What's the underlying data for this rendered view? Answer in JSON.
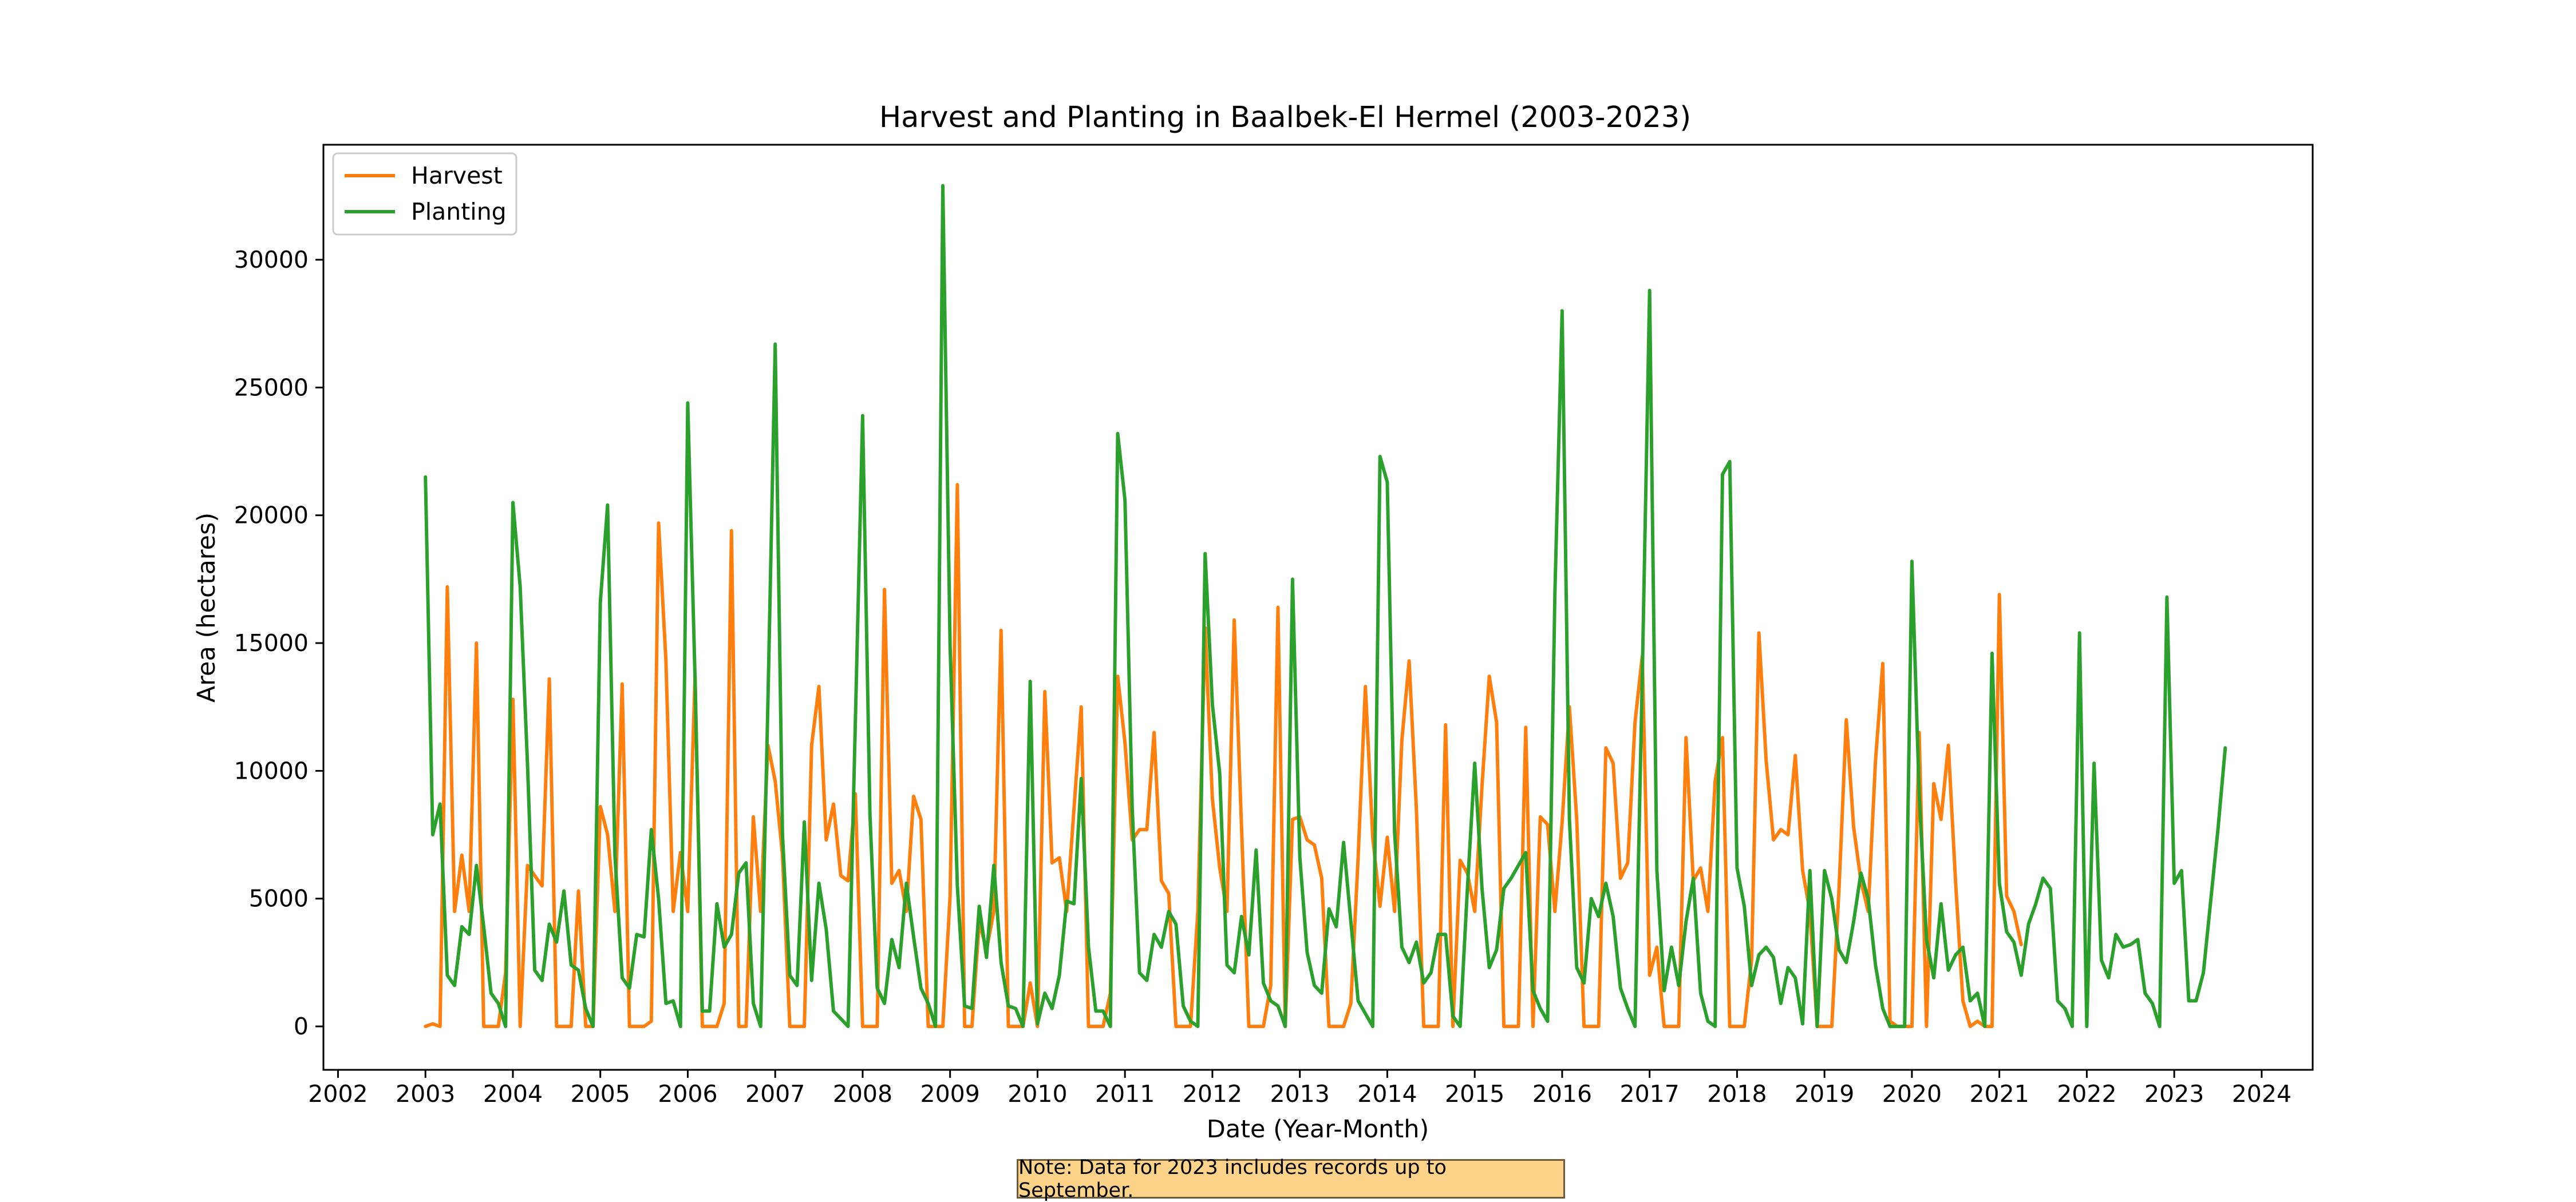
{
  "note": "Note: Data for 2023 includes records up to September.",
  "chart_data": {
    "type": "line",
    "title": "Harvest and Planting in Baalbek-El Hermel (2003-2023)",
    "xlabel": "Date (Year-Month)",
    "ylabel": "Area (hectares)",
    "xlim": [
      "2001-11",
      "2024-08"
    ],
    "ylim": [
      -1700,
      34500
    ],
    "xticks": [
      "2002",
      "2003",
      "2004",
      "2005",
      "2006",
      "2007",
      "2008",
      "2009",
      "2010",
      "2011",
      "2012",
      "2013",
      "2014",
      "2015",
      "2016",
      "2017",
      "2018",
      "2019",
      "2020",
      "2021",
      "2022",
      "2023",
      "2024"
    ],
    "yticks": [
      0,
      5000,
      10000,
      15000,
      20000,
      25000,
      30000
    ],
    "grid": false,
    "legend_position": "top-left",
    "start": "2003-01",
    "series": [
      {
        "name": "Harvest",
        "color": "#ff7f0e",
        "values": [
          0,
          100,
          0,
          17200,
          4500,
          6700,
          4500,
          15000,
          0,
          0,
          0,
          2100,
          12800,
          0,
          6300,
          5900,
          5500,
          13600,
          0,
          0,
          0,
          5300,
          0,
          0,
          8600,
          7500,
          4500,
          13400,
          0,
          0,
          0,
          200,
          19700,
          14300,
          4500,
          6800,
          4500,
          13700,
          0,
          0,
          0,
          900,
          19400,
          0,
          0,
          8200,
          4500,
          11000,
          9600,
          6700,
          0,
          0,
          0,
          11000,
          13300,
          7300,
          8700,
          5900,
          5700,
          9100,
          0,
          0,
          0,
          17100,
          5600,
          6100,
          4500,
          9000,
          8100,
          0,
          0,
          0,
          5100,
          21200,
          0,
          0,
          4100,
          3000,
          4500,
          15500,
          0,
          0,
          0,
          1700,
          0,
          13100,
          6400,
          6600,
          4500,
          8500,
          12500,
          0,
          0,
          0,
          1300,
          13700,
          11100,
          7300,
          7700,
          7700,
          11500,
          5700,
          5200,
          0,
          0,
          0,
          4500,
          15600,
          8900,
          6200,
          4500,
          15900,
          7800,
          0,
          0,
          0,
          1600,
          16400,
          0,
          8100,
          8200,
          7300,
          7100,
          5800,
          0,
          0,
          0,
          900,
          6600,
          13300,
          7400,
          4700,
          7400,
          4500,
          11200,
          14300,
          8500,
          0,
          0,
          0,
          11800,
          0,
          6500,
          6000,
          4500,
          9400,
          13700,
          11900,
          0,
          0,
          0,
          11700,
          0,
          8200,
          7900,
          4500,
          8000,
          12500,
          8100,
          0,
          0,
          0,
          10900,
          10300,
          5800,
          6400,
          11900,
          14500,
          2000,
          3100,
          0,
          0,
          0,
          11300,
          5700,
          6200,
          4500,
          9600,
          11300,
          0,
          0,
          0,
          2600,
          15400,
          10400,
          7300,
          7700,
          7500,
          10600,
          6100,
          4500,
          0,
          0,
          0,
          5400,
          12000,
          7800,
          5700,
          4500,
          10400,
          14200,
          200,
          0,
          0,
          0,
          11500,
          0,
          9500,
          8100,
          11000,
          5600,
          1000,
          0,
          200,
          0,
          0,
          16900,
          5100,
          4500,
          3200
        ]
      },
      {
        "name": "Planting",
        "color": "#2ca02c",
        "values": [
          21500,
          7500,
          8700,
          2000,
          1600,
          3900,
          3600,
          6300,
          3900,
          1300,
          900,
          0,
          20500,
          17200,
          10300,
          2200,
          1800,
          4000,
          3300,
          5300,
          2400,
          2200,
          700,
          0,
          16600,
          20400,
          6700,
          1900,
          1500,
          3600,
          3500,
          7700,
          5000,
          900,
          1000,
          0,
          24400,
          13600,
          600,
          600,
          4800,
          3100,
          3600,
          6000,
          6400,
          900,
          0,
          12700,
          26700,
          7500,
          2000,
          1600,
          8000,
          1800,
          5600,
          3800,
          600,
          300,
          0,
          11900,
          23900,
          8300,
          1500,
          900,
          3400,
          2300,
          5600,
          3500,
          1500,
          900,
          0,
          32900,
          14900,
          5500,
          800,
          700,
          4700,
          2700,
          6300,
          2500,
          800,
          700,
          0,
          13500,
          100,
          1300,
          700,
          2000,
          4900,
          4800,
          9700,
          3100,
          600,
          600,
          0,
          23200,
          20600,
          8500,
          2100,
          1800,
          3600,
          3100,
          4500,
          4000,
          800,
          200,
          0,
          18500,
          12600,
          9900,
          2400,
          2100,
          4300,
          2800,
          6900,
          1700,
          1000,
          800,
          0,
          17500,
          6600,
          2900,
          1600,
          1300,
          4600,
          3900,
          7200,
          4100,
          1000,
          500,
          0,
          22300,
          21300,
          7600,
          3100,
          2500,
          3300,
          1700,
          2100,
          3600,
          3600,
          400,
          0,
          5400,
          10300,
          5400,
          2300,
          3000,
          5400,
          5800,
          6300,
          6800,
          1400,
          700,
          200,
          16900,
          28000,
          8100,
          2300,
          1700,
          5000,
          4300,
          5600,
          4300,
          1500,
          700,
          0,
          13700,
          28800,
          6100,
          1400,
          3100,
          1600,
          4100,
          5800,
          1300,
          200,
          0,
          21600,
          22100,
          6200,
          4700,
          1600,
          2800,
          3100,
          2700,
          900,
          2300,
          1900,
          100,
          6100,
          0,
          6100,
          5000,
          3000,
          2500,
          4100,
          6000,
          5000,
          2400,
          700,
          0,
          0,
          0,
          18200,
          9100,
          3400,
          1900,
          4800,
          2200,
          2800,
          3100,
          1000,
          1300,
          0,
          14600,
          5600,
          3700,
          3300,
          2000,
          4000,
          4800,
          5800,
          5400,
          1000,
          700,
          0,
          15400,
          0,
          10300,
          2600,
          1900,
          3600,
          3100,
          3200,
          3400,
          1300,
          900,
          0,
          16800,
          5600,
          6100,
          1000,
          1000,
          2100,
          4900,
          7700,
          10900
        ]
      }
    ]
  }
}
